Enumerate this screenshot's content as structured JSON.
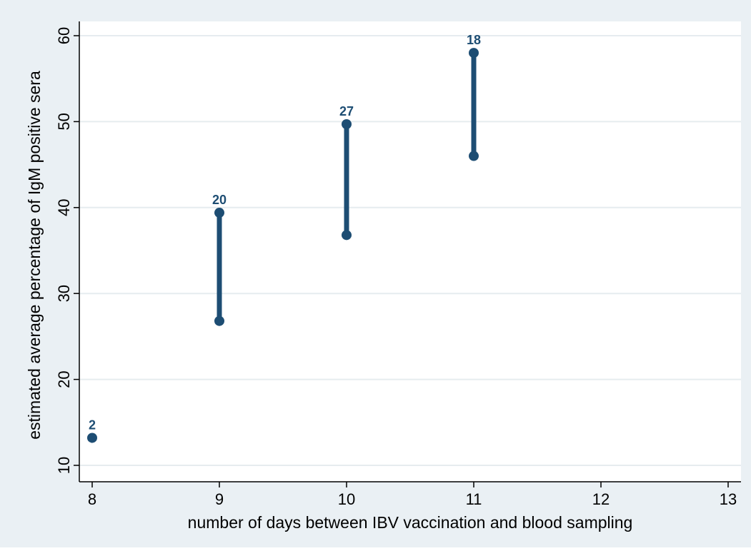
{
  "colors": {
    "outer_background": "#eaf0f4",
    "plot_background": "#ffffff",
    "gridline": "#e6ecef",
    "axis": "#000000",
    "series": "#1d4d73"
  },
  "chart_data": {
    "type": "scatter",
    "subtype": "range-dot",
    "title": "",
    "xlabel": "number of days between IBV vaccination and blood sampling",
    "ylabel": "estimated average percentage of IgM positive sera",
    "xlim": [
      8,
      13
    ],
    "ylim": [
      10,
      60
    ],
    "x_ticks": [
      8,
      9,
      10,
      11,
      12,
      13
    ],
    "y_ticks": [
      10,
      20,
      30,
      40,
      50,
      60
    ],
    "grid": "horizontal",
    "legend": "none",
    "series": [
      {
        "points": [
          {
            "x": 8,
            "low": 13.2,
            "high": 13.2,
            "label": "2"
          },
          {
            "x": 9,
            "low": 26.8,
            "high": 39.4,
            "label": "20"
          },
          {
            "x": 10,
            "low": 36.8,
            "high": 49.7,
            "label": "27"
          },
          {
            "x": 11,
            "low": 46.0,
            "high": 58.0,
            "label": "18"
          }
        ]
      }
    ]
  }
}
